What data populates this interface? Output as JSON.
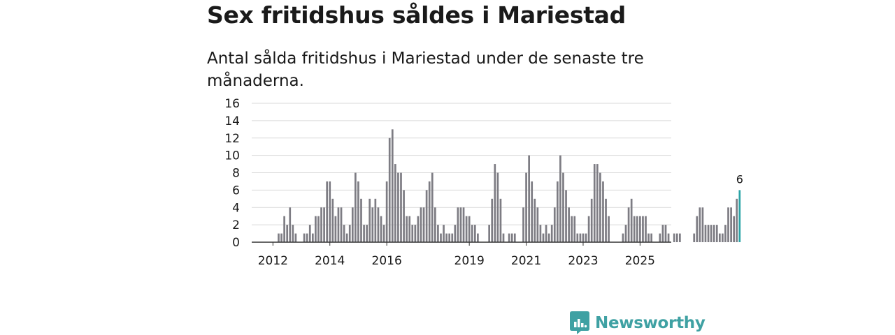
{
  "header": {
    "title": "Sex fritidshus såldes i Mariestad",
    "subtitle": "Antal sålda fritidshus i Mariestad under de senaste tre månaderna."
  },
  "brand": {
    "name": "Newsworthy",
    "color": "#3fa1a3"
  },
  "colors": {
    "bar": "#7d7c83",
    "highlight": "#2aa3a6",
    "grid": "#d9d9d9",
    "axis": "#333333"
  },
  "chart_data": {
    "type": "bar",
    "title": "Sex fritidshus såldes i Mariestad",
    "subtitle": "Antal sålda fritidshus i Mariestad under de senaste tre månaderna.",
    "xlabel": "",
    "ylabel": "",
    "ylim": [
      0,
      16
    ],
    "yticks": [
      0,
      2,
      4,
      6,
      8,
      10,
      12,
      14,
      16
    ],
    "xticks": [
      {
        "label": "2012",
        "index": 7
      },
      {
        "label": "2014",
        "index": 27
      },
      {
        "label": "2016",
        "index": 47
      },
      {
        "label": "2019",
        "index": 76
      },
      {
        "label": "2021",
        "index": 96
      },
      {
        "label": "2023",
        "index": 116
      },
      {
        "label": "2025",
        "index": 136
      }
    ],
    "grid": true,
    "values": [
      0,
      0,
      0,
      0,
      0,
      0,
      0,
      0,
      0,
      1,
      1,
      3,
      2,
      4,
      2,
      1,
      0,
      0,
      1,
      1,
      2,
      1,
      3,
      3,
      4,
      4,
      7,
      7,
      5,
      3,
      4,
      4,
      2,
      1,
      2,
      4,
      8,
      7,
      5,
      2,
      2,
      5,
      4,
      5,
      4,
      3,
      2,
      7,
      12,
      13,
      9,
      8,
      8,
      6,
      3,
      3,
      2,
      2,
      3,
      4,
      4,
      6,
      7,
      8,
      4,
      2,
      1,
      2,
      1,
      1,
      1,
      2,
      4,
      4,
      4,
      3,
      3,
      2,
      2,
      1,
      0,
      0,
      0,
      2,
      5,
      9,
      8,
      5,
      1,
      0,
      1,
      1,
      1,
      0,
      0,
      4,
      8,
      10,
      7,
      5,
      4,
      2,
      1,
      2,
      1,
      2,
      4,
      7,
      10,
      8,
      6,
      4,
      3,
      3,
      1,
      1,
      1,
      1,
      3,
      5,
      9,
      9,
      8,
      7,
      5,
      3,
      0,
      0,
      0,
      0,
      1,
      2,
      4,
      5,
      3,
      3,
      3,
      3,
      3,
      1,
      1,
      0,
      0,
      1,
      2,
      2,
      1,
      0,
      1,
      1,
      1,
      0,
      0,
      0,
      0,
      1,
      3,
      4,
      4,
      2,
      2,
      2,
      2,
      2,
      1,
      1,
      2,
      4,
      4,
      3,
      5,
      6
    ],
    "highlight_last": true,
    "last_value_label": "6"
  }
}
